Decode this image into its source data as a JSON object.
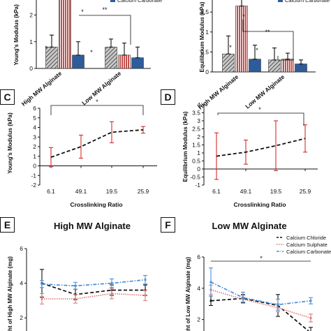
{
  "chart_data": [
    {
      "panel": "A",
      "type": "bar",
      "ylabel": "Young's Modulus (kPa)",
      "categories": [
        "High MW Alginate",
        "Low MW Alginate"
      ],
      "yticks": [
        "0",
        "1",
        "2",
        "3",
        "4"
      ],
      "ylim": [
        0,
        4
      ],
      "legend_visible": [
        "Calcium Carbonate"
      ],
      "series": [
        {
          "values": [
            0.8,
            0.8
          ],
          "errors": [
            0.45,
            0.3
          ],
          "color": "#555555",
          "pattern": "hatch"
        },
        {
          "values": [
            2.8,
            0.5
          ],
          "errors": [
            1.3,
            0.45
          ],
          "color": "#c0504d",
          "pattern": "stripe"
        },
        {
          "values": [
            0.5,
            0.4
          ],
          "errors": [
            0.5,
            0.4
          ],
          "color": "#2e5c9a",
          "pattern": "solid"
        }
      ],
      "annotations": [
        "*",
        "*",
        "*",
        "**"
      ]
    },
    {
      "panel": "B",
      "type": "bar",
      "ylabel": "Equilibrium Modulus (kPa)",
      "categories": [
        "High MW Alginate",
        "Low MW Alginate"
      ],
      "yticks": [
        "0",
        "0.5",
        "1",
        "1.5",
        "2",
        "2.5"
      ],
      "ylim": [
        0,
        2.5
      ],
      "legend_visible": [
        "Calcium Carbonate"
      ],
      "series": [
        {
          "values": [
            0.45,
            0.3
          ],
          "errors": [
            0.45,
            0.3
          ],
          "color": "#555555",
          "pattern": "hatch"
        },
        {
          "values": [
            1.65,
            0.32
          ],
          "errors": [
            0.75,
            0.15
          ],
          "color": "#c0504d",
          "pattern": "stripe"
        },
        {
          "values": [
            0.32,
            0.2
          ],
          "errors": [
            0.35,
            0.1
          ],
          "color": "#2e5c9a",
          "pattern": "solid"
        }
      ],
      "annotations": [
        "*",
        "*",
        "*",
        "**"
      ]
    },
    {
      "panel": "C",
      "type": "line",
      "ylabel": "Young's Modulus (kPa)",
      "xlabel": "Crosslinking Ratio",
      "categories": [
        "6.1",
        "49.1",
        "19.5",
        "25.9"
      ],
      "yticks": [
        "-2",
        "-1",
        "0",
        "1",
        "2",
        "3",
        "4",
        "5",
        "6"
      ],
      "ylim": [
        -2,
        6
      ],
      "values": [
        0.9,
        2.0,
        3.5,
        3.75
      ],
      "errors": [
        1.0,
        1.2,
        1.1,
        0.35
      ],
      "annotations": [
        "*"
      ]
    },
    {
      "panel": "D",
      "type": "line",
      "ylabel": "Equilibrium Modulus (kPa)",
      "xlabel": "Crosslinking Ratio",
      "categories": [
        "6.1",
        "49.1",
        "19.5",
        "25.9"
      ],
      "yticks": [
        "-1",
        "-0.5",
        "0",
        "0.5",
        "1",
        "1.5",
        "2",
        "2.5",
        "3",
        "3.5",
        "4"
      ],
      "ylim": [
        -1,
        4
      ],
      "values": [
        0.8,
        1.05,
        1.45,
        1.9
      ],
      "errors": [
        1.45,
        0.75,
        1.55,
        0.85
      ],
      "annotations": [
        "*"
      ]
    },
    {
      "panel": "E",
      "type": "line",
      "title": "High MW Alginate",
      "ylabel": "Weight of High MW Alginate (mg)",
      "yticks": [
        "2",
        "4",
        "6"
      ],
      "ylim": [
        1,
        6
      ],
      "series": [
        {
          "name": "Calcium Chloride",
          "color": "#111111",
          "values": [
            4.0,
            3.35,
            3.6,
            3.6
          ],
          "errors": [
            0.8,
            0.3,
            0.3,
            0.3
          ]
        },
        {
          "name": "Calcium Sulphate",
          "color": "#e07a7a",
          "values": [
            3.1,
            3.1,
            3.4,
            3.3
          ],
          "errors": [
            0.3,
            0.25,
            0.3,
            0.3
          ]
        },
        {
          "name": "Calcium Carbonate",
          "color": "#4a8fd8",
          "values": [
            3.95,
            3.85,
            4.0,
            4.2
          ],
          "errors": [
            0.2,
            0.2,
            0.25,
            0.25
          ]
        }
      ]
    },
    {
      "panel": "F",
      "type": "line",
      "title": "Low MW Alginate",
      "ylabel": "Weight of Low MW Alginate (mg)",
      "yticks": [
        "2",
        "4",
        "6"
      ],
      "ylim": [
        1,
        6
      ],
      "series": [
        {
          "name": "Calcium Chloride",
          "color": "#111111",
          "values": [
            3.2,
            3.35,
            2.9,
            1.15
          ],
          "errors": [
            0.3,
            0.25,
            0.7,
            0.35
          ]
        },
        {
          "name": "Calcium Sulphate",
          "color": "#e07a7a",
          "values": [
            3.9,
            3.3,
            2.75,
            2.1
          ],
          "errors": [
            0.3,
            0.25,
            0.25,
            0.25
          ]
        },
        {
          "name": "Calcium Carbonate",
          "color": "#4a8fd8",
          "values": [
            4.4,
            3.4,
            2.95,
            3.2
          ],
          "errors": [
            0.9,
            0.35,
            0.35,
            0.2
          ]
        }
      ],
      "annotations": [
        "*"
      ]
    }
  ]
}
